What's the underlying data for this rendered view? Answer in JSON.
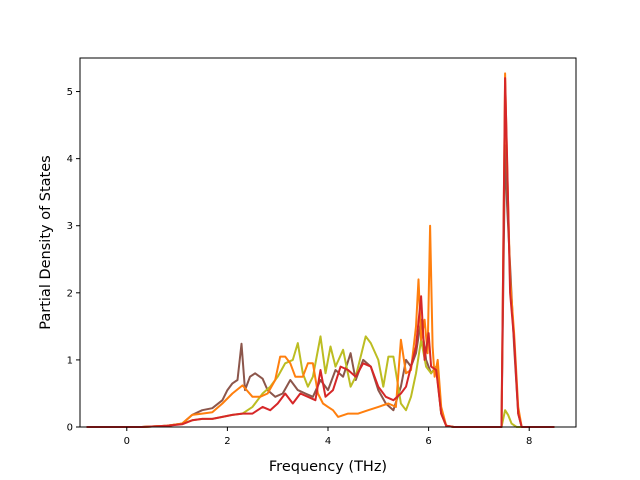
{
  "chart_data": {
    "type": "line",
    "title": "",
    "xlabel": "Frequency (THz)",
    "ylabel": "Partial Density of States",
    "xlim": [
      -0.93,
      8.93
    ],
    "ylim": [
      0,
      5.5
    ],
    "xticks": [
      0,
      2,
      4,
      6,
      8
    ],
    "yticks": [
      0,
      1,
      2,
      3,
      4,
      5
    ],
    "grid": false,
    "legend": "none",
    "series": [
      {
        "color": "#8c564b",
        "points": [
          [
            -0.8,
            0
          ],
          [
            0.3,
            0
          ],
          [
            0.8,
            0.02
          ],
          [
            1.1,
            0.05
          ],
          [
            1.3,
            0.18
          ],
          [
            1.5,
            0.25
          ],
          [
            1.7,
            0.28
          ],
          [
            1.9,
            0.4
          ],
          [
            2.0,
            0.55
          ],
          [
            2.1,
            0.65
          ],
          [
            2.2,
            0.7
          ],
          [
            2.28,
            1.24
          ],
          [
            2.35,
            0.55
          ],
          [
            2.45,
            0.75
          ],
          [
            2.55,
            0.8
          ],
          [
            2.7,
            0.72
          ],
          [
            2.8,
            0.55
          ],
          [
            2.95,
            0.45
          ],
          [
            3.1,
            0.5
          ],
          [
            3.25,
            0.7
          ],
          [
            3.4,
            0.55
          ],
          [
            3.55,
            0.5
          ],
          [
            3.7,
            0.45
          ],
          [
            3.85,
            0.7
          ],
          [
            4.0,
            0.55
          ],
          [
            4.15,
            0.85
          ],
          [
            4.3,
            0.75
          ],
          [
            4.45,
            1.1
          ],
          [
            4.55,
            0.7
          ],
          [
            4.7,
            1.0
          ],
          [
            4.85,
            0.9
          ],
          [
            5.0,
            0.55
          ],
          [
            5.15,
            0.35
          ],
          [
            5.3,
            0.25
          ],
          [
            5.45,
            0.6
          ],
          [
            5.55,
            1.0
          ],
          [
            5.65,
            0.9
          ],
          [
            5.75,
            1.1
          ],
          [
            5.85,
            1.6
          ],
          [
            5.95,
            1.0
          ],
          [
            6.05,
            0.8
          ],
          [
            6.15,
            0.9
          ],
          [
            6.25,
            0.2
          ],
          [
            6.35,
            0.02
          ],
          [
            6.5,
            0
          ],
          [
            7.45,
            0
          ],
          [
            7.52,
            4.2
          ],
          [
            7.56,
            3.3
          ],
          [
            7.62,
            2.4
          ],
          [
            7.7,
            1.2
          ],
          [
            7.78,
            0.2
          ],
          [
            7.85,
            0
          ],
          [
            8.5,
            0
          ]
        ]
      },
      {
        "color": "#bcbd22",
        "points": [
          [
            -0.8,
            0
          ],
          [
            0.3,
            0
          ],
          [
            0.8,
            0.02
          ],
          [
            1.1,
            0.05
          ],
          [
            1.3,
            0.1
          ],
          [
            1.5,
            0.12
          ],
          [
            1.7,
            0.12
          ],
          [
            1.9,
            0.15
          ],
          [
            2.1,
            0.18
          ],
          [
            2.3,
            0.2
          ],
          [
            2.5,
            0.3
          ],
          [
            2.7,
            0.5
          ],
          [
            2.85,
            0.6
          ],
          [
            3.0,
            0.75
          ],
          [
            3.15,
            0.95
          ],
          [
            3.3,
            1.0
          ],
          [
            3.4,
            1.25
          ],
          [
            3.5,
            0.8
          ],
          [
            3.6,
            0.6
          ],
          [
            3.7,
            0.75
          ],
          [
            3.85,
            1.35
          ],
          [
            3.95,
            0.8
          ],
          [
            4.05,
            1.2
          ],
          [
            4.15,
            0.9
          ],
          [
            4.3,
            1.15
          ],
          [
            4.45,
            0.6
          ],
          [
            4.55,
            0.75
          ],
          [
            4.65,
            1.05
          ],
          [
            4.75,
            1.35
          ],
          [
            4.85,
            1.25
          ],
          [
            5.0,
            1.0
          ],
          [
            5.1,
            0.6
          ],
          [
            5.2,
            1.05
          ],
          [
            5.3,
            1.05
          ],
          [
            5.45,
            0.35
          ],
          [
            5.55,
            0.25
          ],
          [
            5.65,
            0.45
          ],
          [
            5.75,
            0.8
          ],
          [
            5.85,
            1.3
          ],
          [
            5.95,
            0.9
          ],
          [
            6.05,
            0.8
          ],
          [
            6.15,
            0.9
          ],
          [
            6.25,
            0.2
          ],
          [
            6.35,
            0.02
          ],
          [
            6.5,
            0
          ],
          [
            7.45,
            0
          ],
          [
            7.52,
            0.25
          ],
          [
            7.58,
            0.18
          ],
          [
            7.65,
            0.05
          ],
          [
            7.75,
            0
          ],
          [
            8.5,
            0
          ]
        ]
      },
      {
        "color": "#ff7f0e",
        "points": [
          [
            -0.8,
            0
          ],
          [
            0.3,
            0
          ],
          [
            0.8,
            0.02
          ],
          [
            1.1,
            0.05
          ],
          [
            1.3,
            0.18
          ],
          [
            1.5,
            0.2
          ],
          [
            1.7,
            0.22
          ],
          [
            1.9,
            0.35
          ],
          [
            2.1,
            0.5
          ],
          [
            2.3,
            0.62
          ],
          [
            2.5,
            0.45
          ],
          [
            2.65,
            0.45
          ],
          [
            2.8,
            0.5
          ],
          [
            2.95,
            0.7
          ],
          [
            3.05,
            1.05
          ],
          [
            3.15,
            1.05
          ],
          [
            3.25,
            0.95
          ],
          [
            3.35,
            0.75
          ],
          [
            3.5,
            0.75
          ],
          [
            3.6,
            0.95
          ],
          [
            3.7,
            0.95
          ],
          [
            3.8,
            0.5
          ],
          [
            3.9,
            0.35
          ],
          [
            4.0,
            0.3
          ],
          [
            4.1,
            0.25
          ],
          [
            4.2,
            0.15
          ],
          [
            4.4,
            0.2
          ],
          [
            4.6,
            0.2
          ],
          [
            4.8,
            0.25
          ],
          [
            5.0,
            0.3
          ],
          [
            5.2,
            0.35
          ],
          [
            5.35,
            0.3
          ],
          [
            5.45,
            1.3
          ],
          [
            5.55,
            0.8
          ],
          [
            5.65,
            0.85
          ],
          [
            5.75,
            1.5
          ],
          [
            5.8,
            2.2
          ],
          [
            5.85,
            1.3
          ],
          [
            5.92,
            1.6
          ],
          [
            5.98,
            1.1
          ],
          [
            6.03,
            3.0
          ],
          [
            6.08,
            1.2
          ],
          [
            6.12,
            0.75
          ],
          [
            6.18,
            1.0
          ],
          [
            6.25,
            0.3
          ],
          [
            6.35,
            0.02
          ],
          [
            6.5,
            0
          ],
          [
            7.45,
            0
          ],
          [
            7.52,
            5.27
          ],
          [
            7.56,
            3.9
          ],
          [
            7.62,
            2.2
          ],
          [
            7.7,
            1.4
          ],
          [
            7.78,
            0.3
          ],
          [
            7.85,
            0
          ],
          [
            8.5,
            0
          ]
        ]
      },
      {
        "color": "#d62728",
        "points": [
          [
            -0.8,
            0
          ],
          [
            0.3,
            0
          ],
          [
            0.8,
            0.02
          ],
          [
            1.1,
            0.04
          ],
          [
            1.3,
            0.1
          ],
          [
            1.5,
            0.12
          ],
          [
            1.7,
            0.12
          ],
          [
            1.9,
            0.15
          ],
          [
            2.1,
            0.18
          ],
          [
            2.3,
            0.2
          ],
          [
            2.5,
            0.2
          ],
          [
            2.7,
            0.3
          ],
          [
            2.85,
            0.25
          ],
          [
            3.0,
            0.35
          ],
          [
            3.15,
            0.5
          ],
          [
            3.3,
            0.35
          ],
          [
            3.45,
            0.5
          ],
          [
            3.6,
            0.45
          ],
          [
            3.75,
            0.4
          ],
          [
            3.85,
            0.85
          ],
          [
            3.95,
            0.45
          ],
          [
            4.1,
            0.55
          ],
          [
            4.25,
            0.9
          ],
          [
            4.4,
            0.85
          ],
          [
            4.55,
            0.75
          ],
          [
            4.7,
            0.95
          ],
          [
            4.85,
            0.9
          ],
          [
            5.0,
            0.6
          ],
          [
            5.15,
            0.45
          ],
          [
            5.3,
            0.4
          ],
          [
            5.45,
            0.5
          ],
          [
            5.55,
            0.6
          ],
          [
            5.65,
            0.9
          ],
          [
            5.75,
            1.2
          ],
          [
            5.85,
            1.95
          ],
          [
            5.92,
            1.0
          ],
          [
            6.0,
            1.4
          ],
          [
            6.05,
            0.9
          ],
          [
            6.15,
            0.85
          ],
          [
            6.25,
            0.2
          ],
          [
            6.35,
            0.02
          ],
          [
            6.5,
            0
          ],
          [
            7.45,
            0
          ],
          [
            7.52,
            5.2
          ],
          [
            7.56,
            4.0
          ],
          [
            7.62,
            2.0
          ],
          [
            7.7,
            1.3
          ],
          [
            7.78,
            0.2
          ],
          [
            7.85,
            0
          ],
          [
            8.5,
            0
          ]
        ]
      }
    ]
  }
}
